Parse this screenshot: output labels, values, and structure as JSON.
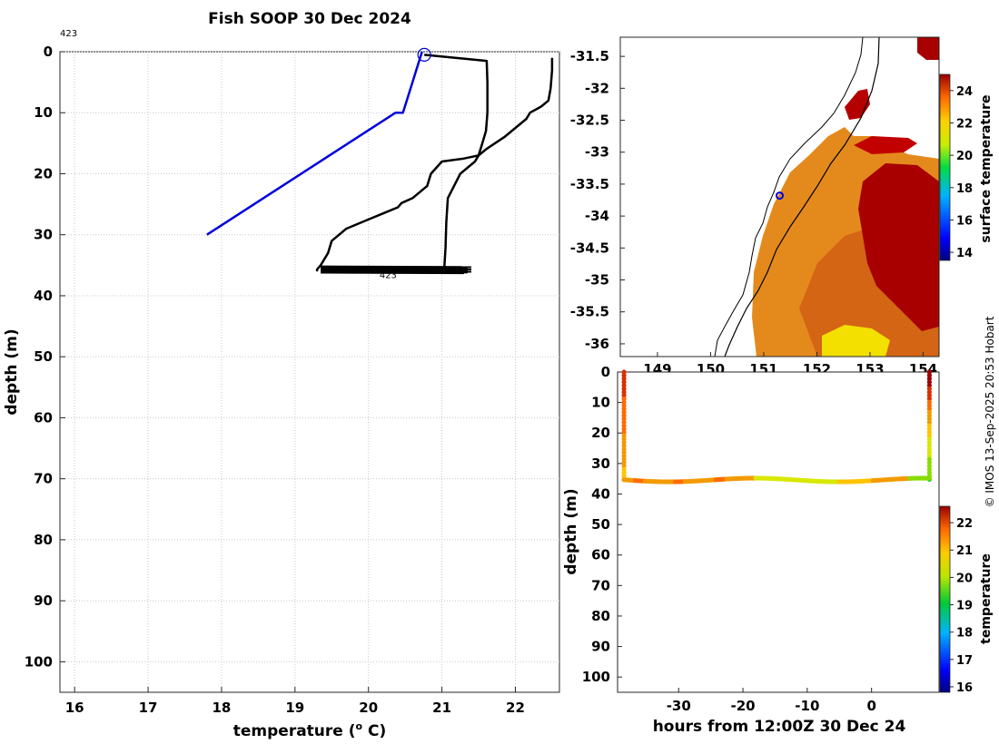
{
  "title": "Fish SOOP 30 Dec 2024",
  "credit": "© IMOS 13-Sep-2025 20:53 Hobart",
  "chart_data": [
    {
      "type": "line",
      "name": "profile",
      "xlabel": "temperature (",
      "xlabel_sup": "o",
      "xlabel_end": " C)",
      "ylabel": "depth (m)",
      "xlim": [
        15.8,
        22.6
      ],
      "ylim": [
        105,
        0
      ],
      "xticks": [
        16,
        17,
        18,
        19,
        20,
        21,
        22
      ],
      "yticks": [
        0,
        10,
        20,
        30,
        40,
        50,
        60,
        70,
        80,
        90,
        100
      ],
      "grid": true,
      "annotations": [
        {
          "text": "423",
          "x": 15.8,
          "y": -2.5
        },
        {
          "text": "423",
          "x": 20.15,
          "y": 36.5
        }
      ],
      "marker": {
        "x": 20.76,
        "y": 0.5,
        "shape": "circle",
        "color": "#0000cc"
      },
      "series": [
        {
          "color": "#0000dd",
          "x": [
            20.73,
            20.6,
            20.47,
            20.37,
            17.8
          ],
          "y": [
            0,
            5,
            10,
            10,
            30
          ]
        },
        {
          "color": "#000000",
          "x": [
            20.76,
            21.61,
            21.62,
            21.62,
            21.6,
            21.55,
            21.5,
            21.45,
            21.25,
            21.08,
            21.06,
            21.05,
            21.03
          ],
          "y": [
            0.5,
            1.5,
            5,
            10,
            13,
            15,
            17,
            18,
            20,
            24,
            28,
            32,
            36
          ]
        },
        {
          "color": "#000000",
          "x": [
            22.5,
            22.5,
            22.48,
            22.45,
            22.35,
            22.2,
            22.15,
            21.85,
            21.6,
            21.5,
            21.3,
            21.0,
            20.85,
            20.8,
            20.6,
            20.45,
            20.4,
            20.2,
            20.0,
            19.7,
            19.5,
            19.45,
            19.35,
            19.3,
            19.3
          ],
          "y": [
            1,
            3,
            6,
            8,
            9,
            10,
            11,
            14,
            16,
            17,
            17.5,
            18,
            20,
            22,
            24,
            24.8,
            25.5,
            26.5,
            27.5,
            29,
            31,
            33,
            35,
            35.7,
            36
          ]
        }
      ],
      "band": {
        "color": "#000000",
        "x": [
          19.35,
          21.4
        ],
        "y": [
          35.2,
          36.2
        ]
      }
    },
    {
      "type": "heatmap",
      "name": "sst-map",
      "xticks": [
        149,
        150,
        151,
        152,
        153,
        154
      ],
      "yticks": [
        -31.5,
        -32,
        -32.5,
        -33,
        -33.5,
        -34,
        -34.5,
        -35,
        -35.5,
        -36
      ],
      "xlim": [
        148.3,
        154.3
      ],
      "ylim": [
        -36.2,
        -31.2
      ],
      "marker": {
        "x": 151.3,
        "y": -33.68
      },
      "colorbar": {
        "label": "surface temperature",
        "ticks": [
          14,
          16,
          18,
          20,
          22,
          24
        ],
        "range": [
          13.5,
          25
        ]
      }
    },
    {
      "type": "scatter",
      "name": "section",
      "xlabel": "hours from 12:00Z 30 Dec 24",
      "ylabel": "depth (m)",
      "xticks": [
        -30,
        -20,
        -10,
        0
      ],
      "yticks": [
        0,
        10,
        20,
        30,
        40,
        50,
        60,
        70,
        80,
        90,
        100
      ],
      "xlim": [
        -39.5,
        10.5
      ],
      "ylim": [
        105,
        0
      ],
      "colorbar": {
        "label": "temperature",
        "ticks": [
          16,
          17,
          18,
          19,
          20,
          21,
          22
        ],
        "range": [
          15.8,
          22.6
        ]
      }
    }
  ]
}
